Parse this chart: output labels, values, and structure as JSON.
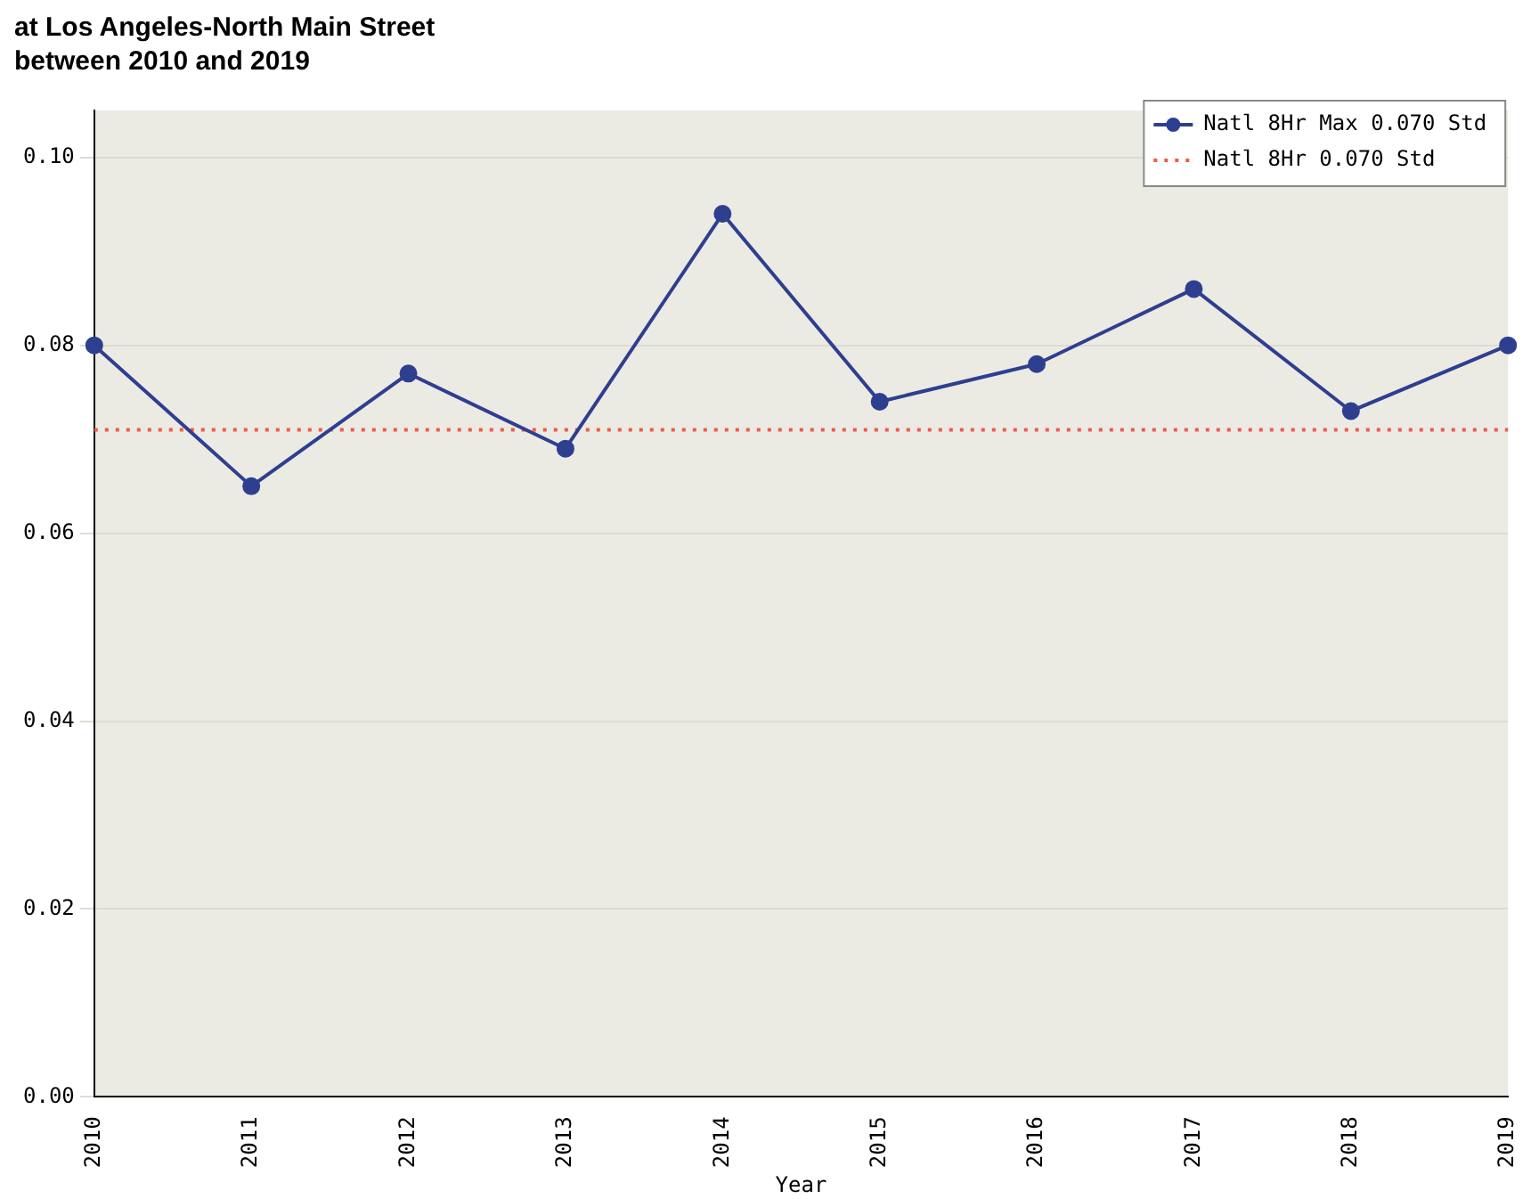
{
  "chart_data": {
    "type": "line",
    "title": "at Los Angeles-North Main Street\nbetween 2010 and 2019",
    "xlabel": "Year",
    "categories": [
      "2010",
      "2011",
      "2012",
      "2013",
      "2014",
      "2015",
      "2016",
      "2017",
      "2018",
      "2019"
    ],
    "series": [
      {
        "name": "Natl 8Hr Max 0.070 Std",
        "color": "#2e3f8f",
        "values": [
          0.08,
          0.065,
          0.077,
          0.069,
          0.094,
          0.074,
          0.078,
          0.086,
          0.073,
          0.08
        ]
      }
    ],
    "ref_lines": [
      {
        "axis": "y",
        "value": 0.071,
        "label": "Natl 8Hr 0.070 Std",
        "color": "#f05a4a",
        "line_style": "dotted"
      }
    ],
    "ylim": [
      0,
      0.105
    ],
    "yticks": [
      {
        "value": 0,
        "label": "0.00"
      },
      {
        "value": 0.02,
        "label": "0.02"
      },
      {
        "value": 0.04,
        "label": "0.04"
      },
      {
        "value": 0.06,
        "label": "0.06"
      },
      {
        "value": 0.08,
        "label": "0.08"
      },
      {
        "value": 0.1,
        "label": "0.10"
      }
    ],
    "grid": "y",
    "legend": "top right",
    "marker": "circle",
    "line_style": "solid"
  }
}
